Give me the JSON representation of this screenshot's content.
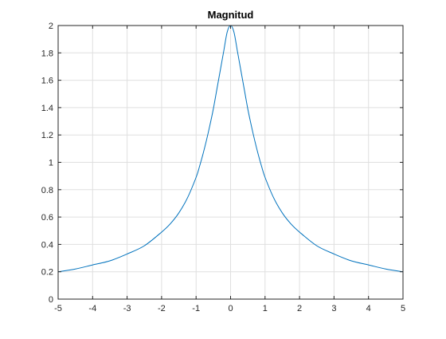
{
  "figure": {
    "background": "#ffffff"
  },
  "chart_data": {
    "type": "line",
    "title": "Magnitud",
    "xlabel": "",
    "ylabel": "",
    "xlim": [
      -5,
      5
    ],
    "ylim": [
      0,
      2
    ],
    "grid": true,
    "x_ticks": [
      -5,
      -4,
      -3,
      -2,
      -1,
      0,
      1,
      2,
      3,
      4,
      5
    ],
    "x_tick_labels": [
      "-5",
      "-4",
      "-3",
      "-2",
      "-1",
      "0",
      "1",
      "2",
      "3",
      "4",
      "5"
    ],
    "y_ticks": [
      0,
      0.2,
      0.4,
      0.6,
      0.8,
      1,
      1.2,
      1.4,
      1.6,
      1.8,
      2
    ],
    "y_tick_labels": [
      "0",
      "0.2",
      "0.4",
      "0.6",
      "0.8",
      "1",
      "1.2",
      "1.4",
      "1.6",
      "1.8",
      "2"
    ],
    "series": [
      {
        "color": "#0072bd",
        "x": [
          -5,
          -4.5,
          -4,
          -3.5,
          -3,
          -2.5,
          -2,
          -1.75,
          -1.5,
          -1.25,
          -1,
          -0.9,
          -0.8,
          -0.7,
          -0.6,
          -0.5,
          -0.4,
          -0.3,
          -0.2,
          -0.1,
          0,
          0.1,
          0.2,
          0.3,
          0.4,
          0.5,
          0.6,
          0.7,
          0.8,
          0.9,
          1,
          1.25,
          1.5,
          1.75,
          2,
          2.5,
          3,
          3.5,
          4,
          4.5,
          5
        ],
        "y": [
          0.2,
          0.22,
          0.25,
          0.28,
          0.33,
          0.39,
          0.49,
          0.55,
          0.63,
          0.74,
          0.89,
          0.97,
          1.06,
          1.16,
          1.27,
          1.39,
          1.53,
          1.67,
          1.81,
          1.95,
          2.0,
          1.95,
          1.81,
          1.67,
          1.53,
          1.39,
          1.27,
          1.16,
          1.06,
          0.97,
          0.89,
          0.74,
          0.63,
          0.55,
          0.49,
          0.39,
          0.33,
          0.28,
          0.25,
          0.22,
          0.2
        ]
      }
    ]
  }
}
